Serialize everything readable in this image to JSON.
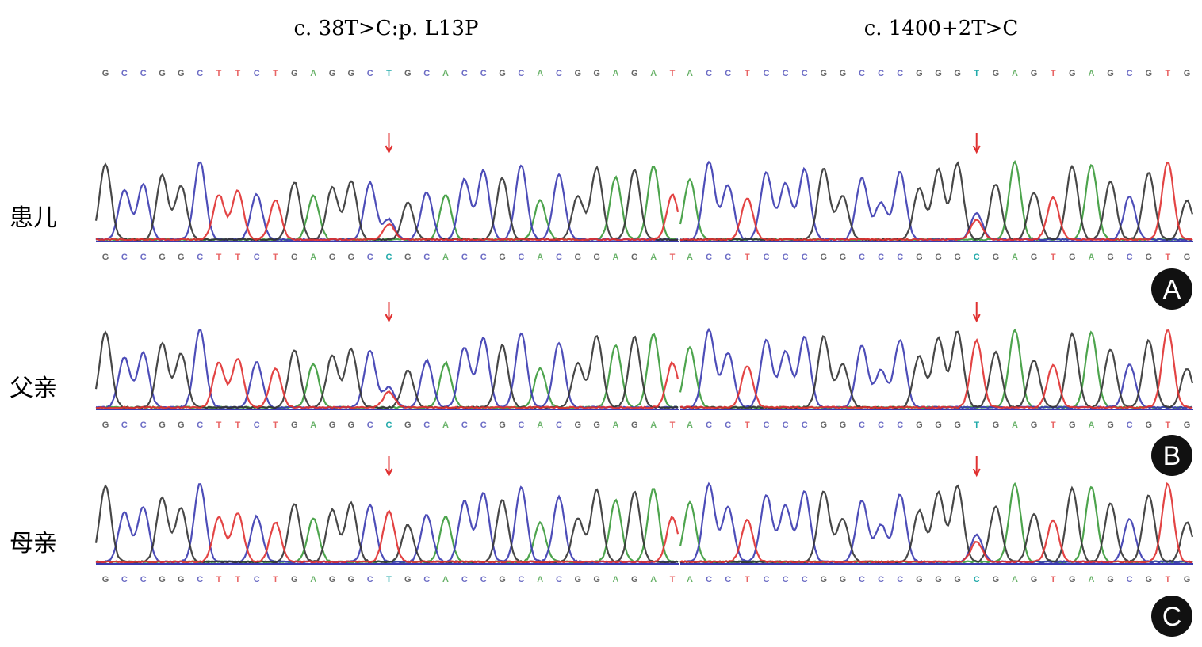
{
  "titles": [
    "c. 38T>C:p. L13P",
    "c. 1400+2T>C"
  ],
  "reference": {
    "left": "GCCGGCTTCTGAGGCTGCACCGCACGGAGAT",
    "right": "ACCTCCCGGCCCGGGTGAGTGAGCGTG"
  },
  "rows": [
    {
      "label": "患儿",
      "panel": "A",
      "left": "GCCGGCTTCTGAGGCCGCACCGCACGGAGAT",
      "right": "ACCTCCCGGCCCGGGCGAGTGAGCGTG"
    },
    {
      "label": "父亲",
      "panel": "B",
      "left": "GCCGGCTTCTGAGGCCGCACCGCACGGAGAT",
      "right": "ACCTCCCGGCCCGGGTGAGTGAGCGTG"
    },
    {
      "label": "母亲",
      "panel": "C",
      "left": "GCCGGCTTCTGAGGCTGCACCGCACGGAGAT",
      "right": "ACCTCCCGGCCCGGGCGAGTGAGCGTG"
    }
  ]
}
